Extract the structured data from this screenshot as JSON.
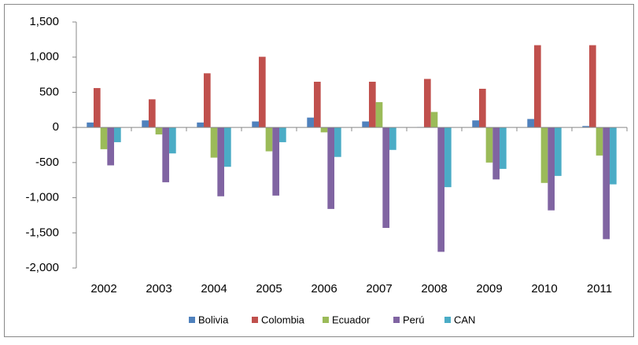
{
  "chart_data": {
    "type": "bar",
    "categories": [
      "2002",
      "2003",
      "2004",
      "2005",
      "2006",
      "2007",
      "2008",
      "2009",
      "2010",
      "2011"
    ],
    "series": [
      {
        "name": "Bolivia",
        "color": "#4f81bd",
        "values": [
          70,
          100,
          70,
          85,
          140,
          85,
          5,
          100,
          120,
          20
        ]
      },
      {
        "name": "Colombia",
        "color": "#c0504d",
        "values": [
          560,
          400,
          770,
          1005,
          650,
          650,
          690,
          550,
          1170,
          1170
        ]
      },
      {
        "name": "Ecuador",
        "color": "#9bbb59",
        "values": [
          -310,
          -100,
          -430,
          -340,
          -70,
          360,
          220,
          -500,
          -790,
          -400
        ]
      },
      {
        "name": "Perú",
        "color": "#8064a2",
        "values": [
          -540,
          -780,
          -980,
          -970,
          -1160,
          -1430,
          -1770,
          -740,
          -1180,
          -1590
        ]
      },
      {
        "name": "CAN",
        "color": "#4bacc6",
        "values": [
          -210,
          -370,
          -560,
          -210,
          -420,
          -320,
          -850,
          -590,
          -690,
          -810
        ]
      }
    ],
    "ylim": [
      -2000,
      1500
    ],
    "yticks": [
      {
        "value": -2000,
        "label": "-2,000"
      },
      {
        "value": -1500,
        "label": "-1,500"
      },
      {
        "value": -1000,
        "label": "-1,000"
      },
      -500,
      0,
      500,
      {
        "value": 1000,
        "label": "1,000"
      },
      {
        "value": 1500,
        "label": "1,500"
      }
    ],
    "legend": "bottom"
  }
}
